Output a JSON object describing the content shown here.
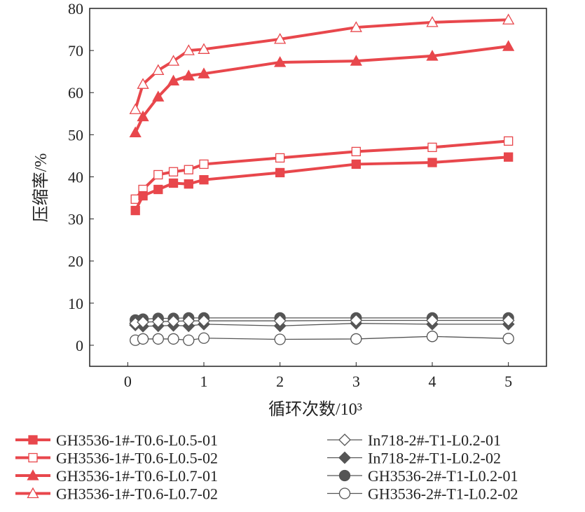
{
  "chart_data": {
    "type": "line",
    "title": "",
    "xlabel": "循环次数/10³",
    "ylabel": "压缩率/%",
    "xlim": [
      -0.5,
      5.5
    ],
    "ylim": [
      -5,
      80
    ],
    "xticks": [
      0,
      1,
      2,
      3,
      4,
      5
    ],
    "yticks": [
      0,
      10,
      20,
      30,
      40,
      50,
      60,
      70,
      80
    ],
    "grid": false,
    "legend_position": "bottom",
    "x": [
      0.1,
      0.2,
      0.4,
      0.6,
      0.8,
      1,
      2,
      3,
      4,
      5
    ],
    "series": [
      {
        "name": "GH3536-1#-T0.6-L0.5-01",
        "marker": "square",
        "filled": true,
        "color": "#e8474c",
        "values": [
          32,
          35.5,
          37,
          38.5,
          38.3,
          39.3,
          41,
          43,
          43.4,
          44.7
        ]
      },
      {
        "name": "GH3536-1#-T0.6-L0.5-02",
        "marker": "square",
        "filled": false,
        "color": "#e8474c",
        "values": [
          34.7,
          37,
          40.5,
          41.2,
          41.7,
          43,
          44.5,
          46,
          47,
          48.5
        ]
      },
      {
        "name": "GH3536-1#-T0.6-L0.7-01",
        "marker": "triangle",
        "filled": true,
        "color": "#e8474c",
        "values": [
          50.5,
          54.3,
          59,
          62.8,
          64,
          64.5,
          67.2,
          67.5,
          68.7,
          71
        ]
      },
      {
        "name": "GH3536-1#-T0.6-L0.7-02",
        "marker": "triangle",
        "filled": false,
        "color": "#e8474c",
        "values": [
          56,
          62,
          65.3,
          67.5,
          70,
          70.3,
          72.7,
          75.5,
          76.7,
          77.3
        ]
      },
      {
        "name": "In718-2#-T1-L0.2-01",
        "marker": "diamond",
        "filled": false,
        "color": "#555555",
        "values": [
          5.2,
          5.5,
          5.6,
          5.7,
          5.8,
          5.8,
          5.8,
          5.9,
          5.9,
          5.9
        ]
      },
      {
        "name": "In718-2#-T1-L0.2-02",
        "marker": "diamond",
        "filled": true,
        "color": "#555555",
        "values": [
          4.8,
          4.5,
          4.6,
          4.7,
          4.6,
          5,
          4.6,
          5.2,
          5,
          5
        ]
      },
      {
        "name": "GH3536-2#-T1-L0.2-01",
        "marker": "circle",
        "filled": true,
        "color": "#555555",
        "values": [
          6,
          6.2,
          6.4,
          6.4,
          6.5,
          6.5,
          6.5,
          6.5,
          6.5,
          6.5
        ]
      },
      {
        "name": "GH3536-2#-T1-L0.2-02",
        "marker": "circle",
        "filled": false,
        "color": "#555555",
        "values": [
          1.2,
          1.5,
          1.5,
          1.5,
          1.2,
          1.7,
          1.4,
          1.5,
          2.1,
          1.6
        ]
      }
    ]
  }
}
